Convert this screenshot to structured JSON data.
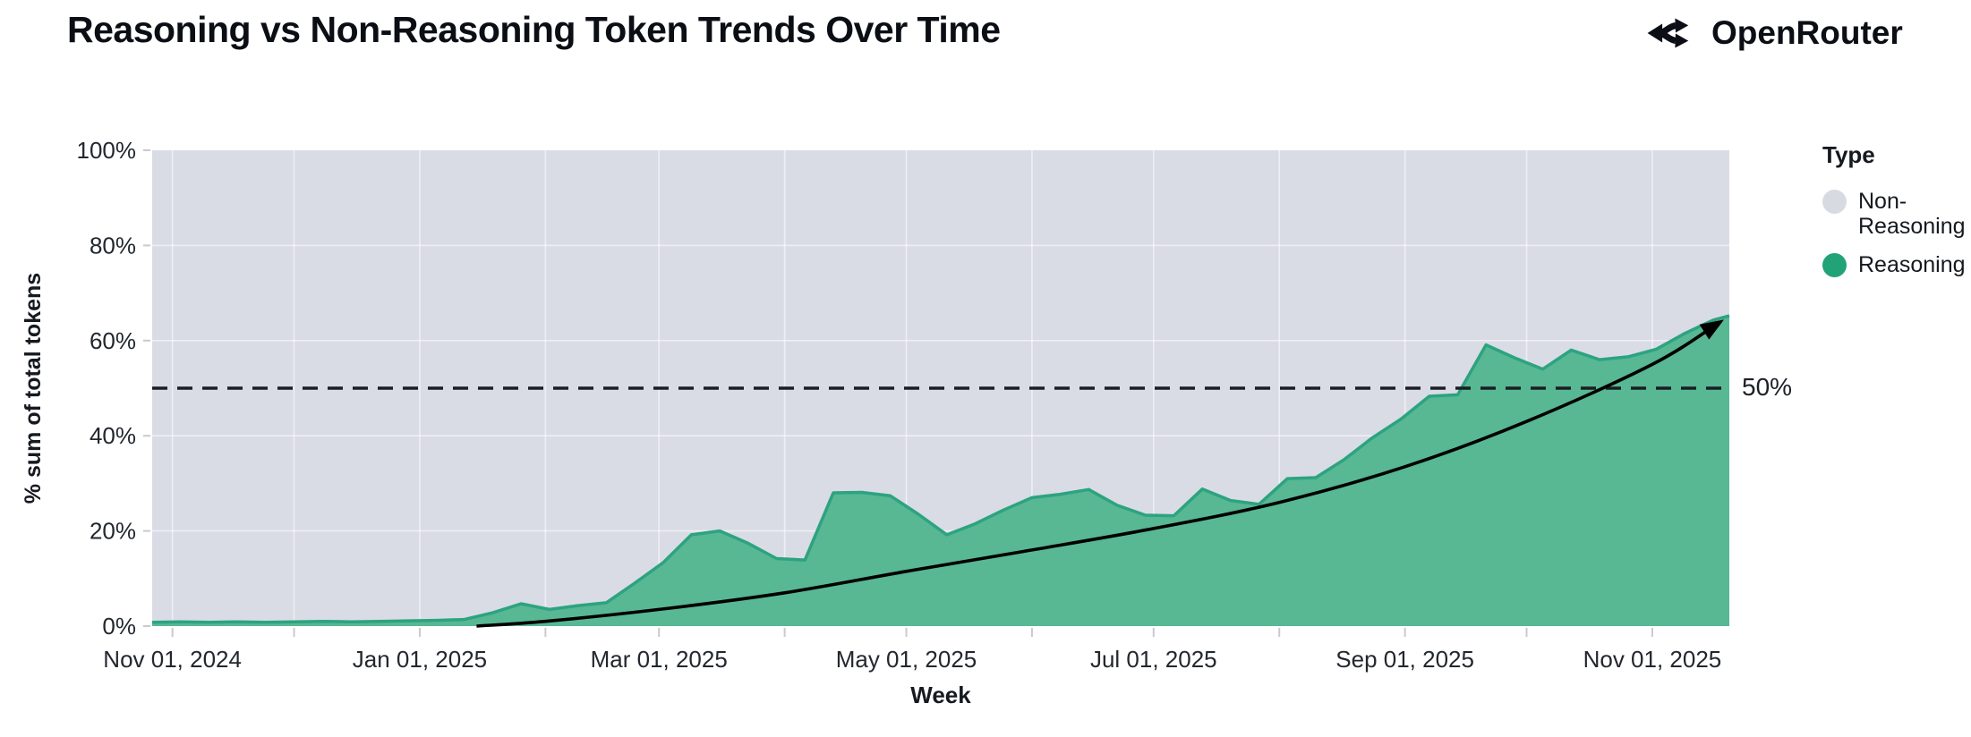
{
  "header": {
    "title": "Reasoning vs Non-Reasoning Token Trends Over Time",
    "brand": "OpenRouter"
  },
  "legend": {
    "title": "Type",
    "entries": [
      {
        "label": "Non-Reasoning",
        "color": "#d8dae2"
      },
      {
        "label": "Reasoning",
        "color": "#21a377"
      }
    ]
  },
  "chart_data": {
    "type": "area",
    "variant": "100% stacked, weekly share of tokens",
    "title": "Reasoning vs Non-Reasoning Token Trends Over Time",
    "xlabel": "Week",
    "ylabel": "% sum of total tokens",
    "ylim": [
      0,
      100
    ],
    "y_ticks": [
      "0%",
      "20%",
      "40%",
      "60%",
      "80%",
      "100%"
    ],
    "x_domain": [
      "2024-10-27",
      "2025-11-20"
    ],
    "x_ticks": [
      {
        "date": "2024-11-01",
        "label": "Nov 01, 2024"
      },
      {
        "date": "2025-01-01",
        "label": "Jan 01, 2025"
      },
      {
        "date": "2025-03-01",
        "label": "Mar 01, 2025"
      },
      {
        "date": "2025-05-01",
        "label": "May 01, 2025"
      },
      {
        "date": "2025-07-01",
        "label": "Jul 01, 2025"
      },
      {
        "date": "2025-09-01",
        "label": "Sep 01, 2025"
      },
      {
        "date": "2025-11-01",
        "label": "Nov 01, 2025"
      }
    ],
    "minor_ticks_months": [
      "2024-11-01",
      "2024-12-01",
      "2025-01-01",
      "2025-02-01",
      "2025-03-01",
      "2025-04-01",
      "2025-05-01",
      "2025-06-01",
      "2025-07-01",
      "2025-08-01",
      "2025-09-01",
      "2025-10-01",
      "2025-11-01"
    ],
    "reference_line": {
      "value": 50,
      "label": "50%",
      "style": "dashed",
      "color": "#1a1d24"
    },
    "grid": {
      "h_lines_pct": [
        20,
        40,
        60,
        80
      ],
      "v_lines": "monthly",
      "color": "rgba(255,255,255,0.55)"
    },
    "panel_bg": "#d9dce5",
    "series": [
      {
        "name": "Non-Reasoning",
        "role": "remainder to 100%",
        "fill": "#d9dce5"
      },
      {
        "name": "Reasoning",
        "fill": "#57b893",
        "line": "#2da380",
        "x": [
          "2024-10-27",
          "2024-11-03",
          "2024-11-10",
          "2024-11-17",
          "2024-11-24",
          "2024-12-01",
          "2024-12-08",
          "2024-12-15",
          "2024-12-22",
          "2024-12-29",
          "2025-01-05",
          "2025-01-12",
          "2025-01-19",
          "2025-01-26",
          "2025-02-02",
          "2025-02-09",
          "2025-02-16",
          "2025-02-23",
          "2025-03-02",
          "2025-03-09",
          "2025-03-16",
          "2025-03-23",
          "2025-03-30",
          "2025-04-06",
          "2025-04-13",
          "2025-04-20",
          "2025-04-27",
          "2025-05-04",
          "2025-05-11",
          "2025-05-18",
          "2025-05-25",
          "2025-06-01",
          "2025-06-08",
          "2025-06-15",
          "2025-06-22",
          "2025-06-29",
          "2025-07-06",
          "2025-07-13",
          "2025-07-20",
          "2025-07-27",
          "2025-08-03",
          "2025-08-10",
          "2025-08-17",
          "2025-08-24",
          "2025-08-31",
          "2025-09-07",
          "2025-09-14",
          "2025-09-21",
          "2025-09-28",
          "2025-10-05",
          "2025-10-12",
          "2025-10-19",
          "2025-10-26",
          "2025-11-02",
          "2025-11-09",
          "2025-11-16"
        ],
        "values": [
          0.8,
          0.9,
          0.8,
          0.9,
          0.8,
          0.9,
          1.0,
          0.9,
          1.0,
          1.1,
          1.2,
          1.4,
          2.8,
          4.7,
          3.5,
          4.3,
          4.9,
          9.0,
          13.3,
          19.2,
          20.0,
          17.4,
          14.2,
          13.9,
          28.0,
          28.1,
          27.4,
          23.5,
          19.2,
          21.5,
          24.4,
          27.0,
          27.7,
          28.7,
          25.4,
          23.3,
          23.2,
          28.8,
          26.4,
          25.6,
          31.0,
          31.2,
          35.0,
          39.6,
          43.5,
          48.3,
          48.6,
          59.1,
          56.4,
          54.0,
          58.0,
          56.0,
          56.6,
          58.2,
          61.5,
          64.3
        ],
        "right_edge": {
          "date": "2025-11-20",
          "value": 65.2
        }
      }
    ],
    "trend_line": {
      "color": "#000000",
      "arrow": true,
      "x": [
        "2025-01-15",
        "2025-02-01",
        "2025-03-01",
        "2025-04-01",
        "2025-05-01",
        "2025-06-01",
        "2025-07-01",
        "2025-08-01",
        "2025-09-01",
        "2025-10-01",
        "2025-11-01",
        "2025-11-17"
      ],
      "values": [
        0,
        1,
        3.5,
        7,
        11.5,
        16,
        20.5,
        26,
        33.5,
        43,
        55,
        63.5
      ]
    }
  }
}
